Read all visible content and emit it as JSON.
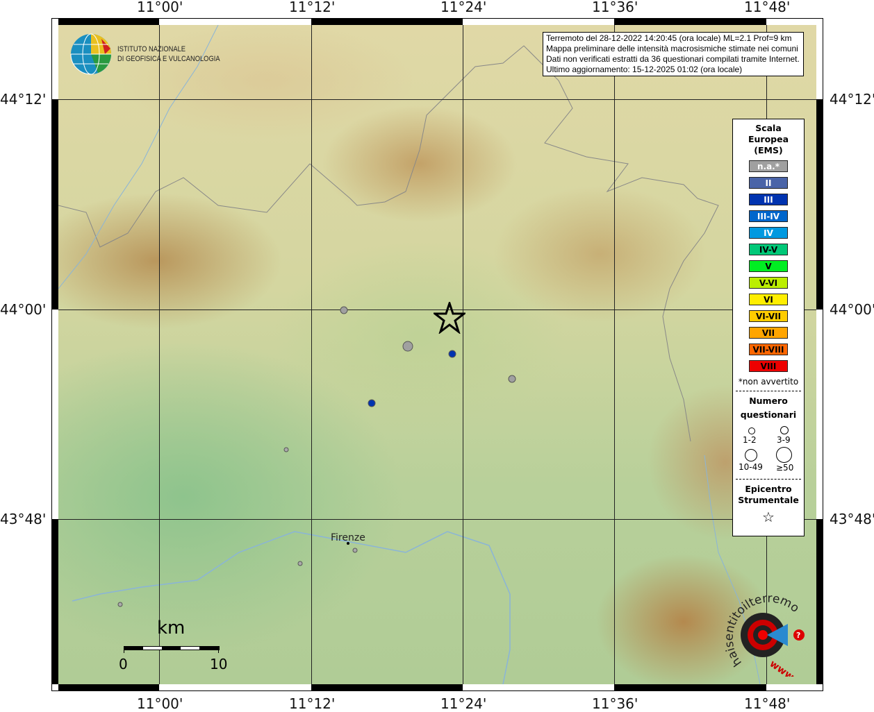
{
  "map": {
    "lon_ticks": [
      "11°00'",
      "11°12'",
      "11°24'",
      "11°36'",
      "11°48'"
    ],
    "lat_ticks": [
      "44°12'",
      "44°00'",
      "43°48'"
    ],
    "city_label": "Firenze",
    "scale_bar": {
      "title": "km",
      "start": "0",
      "end": "10"
    }
  },
  "institute": {
    "line1": "ISTITUTO NAZIONALE",
    "line2": "DI GEOFISICA E VULCANOLOGIA"
  },
  "info": {
    "line1": "Terremoto del 28-12-2022 14:20:45 (ora locale) ML=2.1 Prof=9 km",
    "line2": "Mappa preliminare delle intensità macrosismiche stimate nei comuni",
    "line3": "Dati non verificati estratti da 36 questionari compilati tramite Internet.",
    "line4": "Ultimo aggiornamento: 15-12-2025 01:02 (ora locale)"
  },
  "legend": {
    "title1": "Scala",
    "title2": "Europea",
    "title3": "(EMS)",
    "scale": [
      {
        "label": "n.a.*",
        "color": "#a0a0a0",
        "text": "#ffffff"
      },
      {
        "label": "II",
        "color": "#4a64a8",
        "text": "#ffffff"
      },
      {
        "label": "III",
        "color": "#0033b0",
        "text": "#ffffff"
      },
      {
        "label": "III-IV",
        "color": "#0066cc",
        "text": "#ffffff"
      },
      {
        "label": "IV",
        "color": "#0099e0",
        "text": "#ffffff"
      },
      {
        "label": "IV-V",
        "color": "#00c878",
        "text": "#000000"
      },
      {
        "label": "V",
        "color": "#00ee22",
        "text": "#000000"
      },
      {
        "label": "V-VI",
        "color": "#bbee00",
        "text": "#000000"
      },
      {
        "label": "VI",
        "color": "#ffee00",
        "text": "#000000"
      },
      {
        "label": "VI-VII",
        "color": "#ffcc00",
        "text": "#000000"
      },
      {
        "label": "VII",
        "color": "#ffa500",
        "text": "#000000"
      },
      {
        "label": "VII-VIII",
        "color": "#ff6600",
        "text": "#000000"
      },
      {
        "label": "VIII",
        "color": "#ee0000",
        "text": "#000000"
      }
    ],
    "note": "*non avvertito",
    "count_title1": "Numero",
    "count_title2": "questionari",
    "counts": [
      "1-2",
      "3-9",
      "10-49",
      "≥50"
    ],
    "epi_title1": "Epicentro",
    "epi_title2": "Strumentale"
  },
  "observations": [
    {
      "intensity": "n.a.",
      "count": "3-9",
      "color": "#a0a0a0"
    },
    {
      "intensity": "n.a.",
      "count": "10-49",
      "color": "#a0a0a0"
    },
    {
      "intensity": "n.a.",
      "count": "3-9",
      "color": "#a0a0a0"
    },
    {
      "intensity": "III",
      "count": "3-9",
      "color": "#0033b0"
    },
    {
      "intensity": "III",
      "count": "3-9",
      "color": "#0033b0"
    }
  ],
  "watermark": {
    "text": "haisentitoilterremoto.it",
    "url_text": "www"
  }
}
